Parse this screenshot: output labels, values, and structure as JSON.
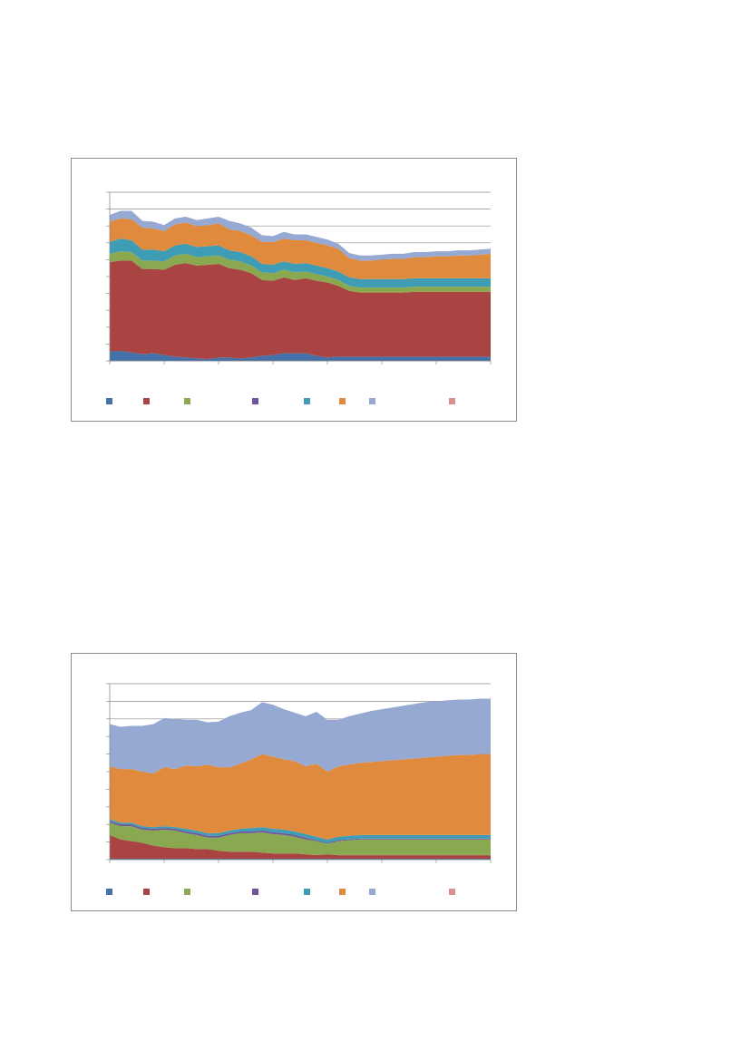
{
  "series_colors": [
    "#4472a8",
    "#a94442",
    "#8aa84f",
    "#6f559a",
    "#3e9cb5",
    "#e08a3e",
    "#95a9d3",
    "#d9908c"
  ],
  "chart_data": [
    {
      "type": "area",
      "stacked": true,
      "title": "",
      "xlabel": "",
      "ylabel": "",
      "grid": true,
      "legend_position": "bottom",
      "ylim": [
        0,
        10
      ],
      "x": [
        0,
        1,
        2,
        3,
        4,
        5,
        6,
        7,
        8,
        9,
        10,
        11,
        12,
        13,
        14,
        15,
        16,
        17,
        18,
        19,
        20,
        21,
        22,
        23,
        24,
        25,
        26,
        27,
        28,
        29,
        30,
        31,
        32,
        33,
        34,
        35
      ],
      "series": [
        {
          "color": "#4472a8",
          "values": [
            0.55,
            0.6,
            0.5,
            0.4,
            0.45,
            0.35,
            0.25,
            0.2,
            0.15,
            0.1,
            0.2,
            0.2,
            0.15,
            0.2,
            0.3,
            0.35,
            0.45,
            0.45,
            0.45,
            0.3,
            0.2,
            0.25,
            0.25,
            0.25,
            0.25,
            0.25,
            0.25,
            0.25,
            0.25,
            0.25,
            0.25,
            0.25,
            0.25,
            0.25,
            0.25,
            0.25
          ]
        },
        {
          "color": "#a94442",
          "values": [
            5.3,
            5.35,
            5.45,
            5.05,
            5.0,
            5.05,
            5.45,
            5.6,
            5.5,
            5.6,
            5.55,
            5.3,
            5.25,
            5.0,
            4.5,
            4.4,
            4.5,
            4.35,
            4.45,
            4.45,
            4.45,
            4.2,
            3.9,
            3.8,
            3.8,
            3.8,
            3.8,
            3.8,
            3.85,
            3.85,
            3.85,
            3.85,
            3.85,
            3.85,
            3.85,
            3.85
          ]
        },
        {
          "color": "#8aa84f",
          "values": [
            0.5,
            0.55,
            0.5,
            0.5,
            0.5,
            0.5,
            0.55,
            0.55,
            0.5,
            0.5,
            0.5,
            0.5,
            0.5,
            0.45,
            0.45,
            0.45,
            0.45,
            0.45,
            0.4,
            0.4,
            0.35,
            0.35,
            0.3,
            0.3,
            0.3,
            0.3,
            0.3,
            0.3,
            0.3,
            0.3,
            0.3,
            0.3,
            0.3,
            0.3,
            0.3,
            0.3
          ]
        },
        {
          "color": "#6f559a",
          "values": [
            0,
            0,
            0,
            0,
            0,
            0,
            0,
            0,
            0,
            0,
            0,
            0,
            0,
            0,
            0,
            0,
            0,
            0,
            0,
            0,
            0,
            0,
            0,
            0,
            0,
            0,
            0,
            0,
            0,
            0,
            0,
            0,
            0,
            0,
            0,
            0
          ]
        },
        {
          "color": "#3e9cb5",
          "values": [
            0.7,
            0.75,
            0.7,
            0.65,
            0.65,
            0.6,
            0.6,
            0.6,
            0.6,
            0.6,
            0.6,
            0.55,
            0.55,
            0.55,
            0.5,
            0.5,
            0.5,
            0.5,
            0.5,
            0.5,
            0.5,
            0.5,
            0.5,
            0.5,
            0.5,
            0.5,
            0.5,
            0.5,
            0.5,
            0.5,
            0.5,
            0.5,
            0.5,
            0.5,
            0.5,
            0.5
          ]
        },
        {
          "color": "#e08a3e",
          "values": [
            1.2,
            1.2,
            1.25,
            1.3,
            1.25,
            1.2,
            1.25,
            1.25,
            1.25,
            1.25,
            1.3,
            1.25,
            1.25,
            1.25,
            1.3,
            1.35,
            1.35,
            1.4,
            1.35,
            1.35,
            1.35,
            1.35,
            1.15,
            1.1,
            1.1,
            1.15,
            1.2,
            1.2,
            1.25,
            1.25,
            1.3,
            1.3,
            1.35,
            1.35,
            1.4,
            1.45
          ]
        },
        {
          "color": "#95a9d3",
          "values": [
            0.4,
            0.45,
            0.5,
            0.4,
            0.4,
            0.35,
            0.35,
            0.35,
            0.35,
            0.4,
            0.4,
            0.5,
            0.45,
            0.45,
            0.4,
            0.35,
            0.4,
            0.35,
            0.35,
            0.35,
            0.35,
            0.3,
            0.3,
            0.3,
            0.3,
            0.3,
            0.3,
            0.3,
            0.3,
            0.3,
            0.3,
            0.3,
            0.3,
            0.3,
            0.3,
            0.3
          ]
        },
        {
          "color": "#d9908c",
          "values": [
            0,
            0,
            0,
            0,
            0,
            0,
            0,
            0,
            0,
            0,
            0,
            0,
            0,
            0,
            0,
            0,
            0,
            0,
            0,
            0,
            0,
            0,
            0,
            0,
            0,
            0,
            0,
            0,
            0,
            0,
            0,
            0,
            0,
            0,
            0,
            0
          ]
        }
      ]
    },
    {
      "type": "area",
      "stacked": true,
      "title": "",
      "xlabel": "",
      "ylabel": "",
      "grid": true,
      "legend_position": "bottom",
      "ylim": [
        0,
        10
      ],
      "x": [
        0,
        1,
        2,
        3,
        4,
        5,
        6,
        7,
        8,
        9,
        10,
        11,
        12,
        13,
        14,
        15,
        16,
        17,
        18,
        19,
        20,
        21,
        22,
        23,
        24,
        25,
        26,
        27,
        28,
        29,
        30,
        31,
        32,
        33,
        34,
        35
      ],
      "series": [
        {
          "color": "#4472a8",
          "values": [
            0.05,
            0.05,
            0.05,
            0.05,
            0.05,
            0.05,
            0.05,
            0.05,
            0.05,
            0.05,
            0.05,
            0.05,
            0.05,
            0.05,
            0.05,
            0.05,
            0.05,
            0.05,
            0.05,
            0.05,
            0.05,
            0.05,
            0.05,
            0.05,
            0.05,
            0.05,
            0.05,
            0.05,
            0.05,
            0.05,
            0.05,
            0.05,
            0.05,
            0.05,
            0.05,
            0.05
          ]
        },
        {
          "color": "#a94442",
          "values": [
            1.35,
            1.1,
            1.0,
            0.9,
            0.75,
            0.65,
            0.6,
            0.6,
            0.55,
            0.55,
            0.45,
            0.4,
            0.4,
            0.4,
            0.35,
            0.3,
            0.3,
            0.3,
            0.25,
            0.2,
            0.25,
            0.2,
            0.2,
            0.2,
            0.2,
            0.2,
            0.2,
            0.2,
            0.2,
            0.2,
            0.2,
            0.2,
            0.2,
            0.2,
            0.2,
            0.2
          ]
        },
        {
          "color": "#8aa84f",
          "values": [
            0.7,
            0.75,
            0.85,
            0.75,
            0.85,
            1.0,
            1.0,
            0.85,
            0.8,
            0.65,
            0.75,
            0.95,
            1.05,
            1.05,
            1.15,
            1.1,
            1.05,
            0.95,
            0.85,
            0.8,
            0.6,
            0.8,
            0.85,
            0.9,
            0.9,
            0.9,
            0.9,
            0.9,
            0.9,
            0.9,
            0.9,
            0.9,
            0.9,
            0.9,
            0.9,
            0.9
          ]
        },
        {
          "color": "#6f559a",
          "values": [
            0.1,
            0.1,
            0.1,
            0.1,
            0.1,
            0.1,
            0.1,
            0.1,
            0.1,
            0.1,
            0.1,
            0.1,
            0.1,
            0.1,
            0.1,
            0.1,
            0.1,
            0.1,
            0.1,
            0.05,
            0.05,
            0.05,
            0.05,
            0.05,
            0.05,
            0.05,
            0.05,
            0.05,
            0.05,
            0.05,
            0.05,
            0.05,
            0.05,
            0.05,
            0.05,
            0.05
          ]
        },
        {
          "color": "#3e9cb5",
          "values": [
            0.1,
            0.1,
            0.1,
            0.1,
            0.1,
            0.1,
            0.1,
            0.15,
            0.15,
            0.15,
            0.15,
            0.15,
            0.15,
            0.2,
            0.2,
            0.2,
            0.2,
            0.2,
            0.2,
            0.2,
            0.2,
            0.2,
            0.2,
            0.2,
            0.2,
            0.2,
            0.2,
            0.2,
            0.2,
            0.2,
            0.2,
            0.2,
            0.2,
            0.2,
            0.2,
            0.2
          ]
        },
        {
          "color": "#e08a3e",
          "values": [
            3.0,
            3.05,
            3.05,
            3.1,
            3.05,
            3.35,
            3.3,
            3.6,
            3.65,
            3.9,
            3.75,
            3.6,
            3.7,
            3.9,
            4.15,
            4.1,
            4.0,
            4.0,
            3.85,
            4.15,
            3.85,
            4.0,
            4.05,
            4.1,
            4.15,
            4.2,
            4.25,
            4.3,
            4.35,
            4.4,
            4.45,
            4.5,
            4.55,
            4.55,
            4.6,
            4.6
          ]
        },
        {
          "color": "#95a9d3",
          "values": [
            2.4,
            2.4,
            2.45,
            2.6,
            2.8,
            2.8,
            2.85,
            2.6,
            2.65,
            2.4,
            2.6,
            2.9,
            2.9,
            2.8,
            2.95,
            2.95,
            2.85,
            2.75,
            2.85,
            2.95,
            2.95,
            2.65,
            2.75,
            2.8,
            2.9,
            2.95,
            3.0,
            3.05,
            3.1,
            3.15,
            3.15,
            3.15,
            3.15,
            3.15,
            3.15,
            3.15
          ]
        },
        {
          "color": "#d9908c",
          "values": [
            0,
            0,
            0,
            0,
            0,
            0,
            0,
            0,
            0,
            0,
            0,
            0,
            0,
            0,
            0,
            0,
            0,
            0,
            0,
            0,
            0,
            0,
            0,
            0,
            0,
            0,
            0,
            0,
            0,
            0,
            0,
            0,
            0,
            0,
            0,
            0
          ]
        }
      ]
    }
  ]
}
